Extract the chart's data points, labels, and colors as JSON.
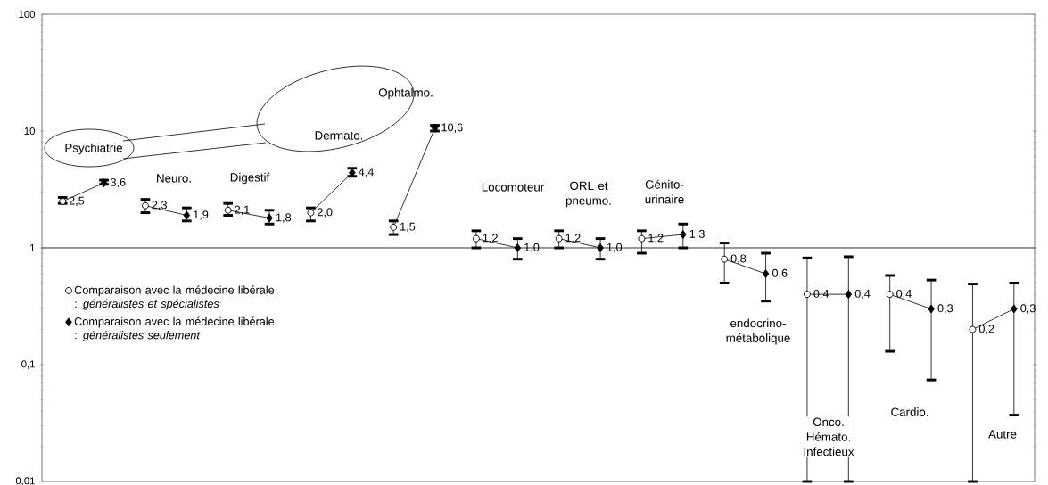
{
  "chart_data": {
    "type": "scatter",
    "log": "y",
    "categories": [
      null,
      null,
      null,
      null,
      null,
      null,
      null,
      null,
      null,
      null,
      null,
      null,
      null,
      null,
      null,
      null,
      null,
      null,
      null,
      null,
      null,
      null,
      null,
      null
    ],
    "ylim": [
      0.01,
      100
    ],
    "yticks": [
      {
        "value": 0.01,
        "label": "0,01"
      },
      {
        "value": 0.1,
        "label": "0,1"
      },
      1,
      10,
      100
    ],
    "tick_labels": "y",
    "grid": false,
    "legend": "left",
    "ref_lines": [
      {
        "axis": "y",
        "value": 1,
        "color": "#000000"
      }
    ],
    "series": [
      {
        "name": "Comparaison avec la médecine libérale : *généralistes et spécialistes*",
        "color": "#000000",
        "marker": "circle",
        "values": [
          2.5,
          null,
          2.3,
          null,
          2.1,
          null,
          2.0,
          null,
          1.5,
          null,
          1.2,
          null,
          1.2,
          null,
          1.2,
          null,
          0.8,
          null,
          0.4,
          null,
          0.4,
          null,
          0.2,
          null
        ],
        "errors": [
          [
            2.4,
            2.7
          ],
          null,
          [
            2.0,
            2.6
          ],
          null,
          [
            1.9,
            2.4
          ],
          null,
          [
            1.7,
            2.2
          ],
          null,
          [
            1.3,
            1.7
          ],
          null,
          [
            1.0,
            1.4
          ],
          null,
          [
            1.0,
            1.4
          ],
          null,
          [
            0.9,
            1.4
          ],
          null,
          [
            0.5,
            1.1
          ],
          null,
          [
            0.01,
            0.82
          ],
          null,
          [
            0.13,
            0.58
          ],
          null,
          [
            0.01,
            0.49
          ],
          null
        ],
        "value_labels": [
          "2,5",
          null,
          "2,3",
          null,
          "2,1",
          null,
          "2,0",
          null,
          "1,5",
          null,
          "1,2",
          null,
          "1,2",
          null,
          "1,2",
          null,
          "0,8",
          null,
          "0,4",
          null,
          "0,4",
          null,
          "0,2",
          null
        ]
      },
      {
        "name": "Comparaison avec la médecine libérale : *généralistes seulement*",
        "color": "#000000",
        "marker": "diamond",
        "values": [
          null,
          3.6,
          null,
          1.9,
          null,
          1.8,
          null,
          4.4,
          null,
          10.6,
          null,
          1.0,
          null,
          1.0,
          null,
          1.3,
          null,
          0.6,
          null,
          0.4,
          null,
          0.3,
          null,
          0.3
        ],
        "errors": [
          null,
          [
            3.5,
            3.8
          ],
          null,
          [
            1.7,
            2.2
          ],
          null,
          [
            1.6,
            2.1
          ],
          null,
          [
            4.1,
            4.8
          ],
          null,
          [
            10.0,
            11.2
          ],
          null,
          [
            0.8,
            1.2
          ],
          null,
          [
            0.8,
            1.2
          ],
          null,
          [
            1.0,
            1.6
          ],
          null,
          [
            0.35,
            0.9
          ],
          null,
          [
            0.01,
            0.84
          ],
          null,
          [
            0.074,
            0.53
          ],
          null,
          [
            0.037,
            0.5
          ]
        ],
        "value_labels": [
          null,
          "3,6",
          null,
          "1,9",
          null,
          "1,8",
          null,
          "4,4",
          null,
          "10,6",
          null,
          "1,0",
          null,
          "1,0",
          null,
          "1,3",
          null,
          "0,6",
          null,
          "0,4",
          null,
          "0,3",
          null,
          "0,3"
        ]
      },
      {
        "type": "line",
        "color": "#000000",
        "marker": "none",
        "values": [
          2.5,
          3.6,
          null,
          null,
          null,
          null,
          null,
          null,
          null,
          null,
          null,
          null,
          null,
          null,
          null,
          null,
          null,
          null,
          null,
          null,
          null,
          null,
          null,
          null
        ]
      },
      {
        "type": "line",
        "color": "#000000",
        "marker": "none",
        "values": [
          null,
          null,
          2.3,
          1.9,
          null,
          null,
          null,
          null,
          null,
          null,
          null,
          null,
          null,
          null,
          null,
          null,
          null,
          null,
          null,
          null,
          null,
          null,
          null,
          null
        ]
      },
      {
        "type": "line",
        "color": "#000000",
        "marker": "none",
        "values": [
          null,
          null,
          null,
          null,
          2.1,
          1.8,
          null,
          null,
          null,
          null,
          null,
          null,
          null,
          null,
          null,
          null,
          null,
          null,
          null,
          null,
          null,
          null,
          null,
          null
        ]
      },
      {
        "type": "line",
        "color": "#000000",
        "marker": "none",
        "values": [
          null,
          null,
          null,
          null,
          null,
          null,
          2.0,
          4.4,
          null,
          null,
          null,
          null,
          null,
          null,
          null,
          null,
          null,
          null,
          null,
          null,
          null,
          null,
          null,
          null
        ]
      },
      {
        "type": "line",
        "color": "#000000",
        "marker": "none",
        "values": [
          null,
          null,
          null,
          null,
          null,
          null,
          null,
          null,
          1.5,
          10.6,
          null,
          null,
          null,
          null,
          null,
          null,
          null,
          null,
          null,
          null,
          null,
          null,
          null,
          null
        ]
      },
      {
        "type": "line",
        "color": "#000000",
        "marker": "none",
        "values": [
          null,
          null,
          null,
          null,
          null,
          null,
          null,
          null,
          null,
          null,
          1.2,
          1.0,
          null,
          null,
          null,
          null,
          null,
          null,
          null,
          null,
          null,
          null,
          null,
          null
        ]
      },
      {
        "type": "line",
        "color": "#000000",
        "marker": "none",
        "values": [
          null,
          null,
          null,
          null,
          null,
          null,
          null,
          null,
          null,
          null,
          null,
          null,
          1.2,
          1.0,
          null,
          null,
          null,
          null,
          null,
          null,
          null,
          null,
          null,
          null
        ]
      },
      {
        "type": "line",
        "color": "#000000",
        "marker": "none",
        "values": [
          null,
          null,
          null,
          null,
          null,
          null,
          null,
          null,
          null,
          null,
          null,
          null,
          null,
          null,
          1.2,
          1.3,
          null,
          null,
          null,
          null,
          null,
          null,
          null,
          null
        ]
      },
      {
        "type": "line",
        "color": "#000000",
        "marker": "none",
        "values": [
          null,
          null,
          null,
          null,
          null,
          null,
          null,
          null,
          null,
          null,
          null,
          null,
          null,
          null,
          null,
          null,
          0.8,
          0.6,
          null,
          null,
          null,
          null,
          null,
          null
        ]
      },
      {
        "type": "line",
        "color": "#000000",
        "marker": "none",
        "values": [
          null,
          null,
          null,
          null,
          null,
          null,
          null,
          null,
          null,
          null,
          null,
          null,
          null,
          null,
          null,
          null,
          null,
          null,
          0.4,
          0.4,
          null,
          null,
          null,
          null
        ]
      },
      {
        "type": "line",
        "color": "#000000",
        "marker": "none",
        "values": [
          null,
          null,
          null,
          null,
          null,
          null,
          null,
          null,
          null,
          null,
          null,
          null,
          null,
          null,
          null,
          null,
          null,
          null,
          null,
          null,
          0.4,
          0.3,
          null,
          null
        ]
      },
      {
        "type": "line",
        "color": "#000000",
        "marker": "none",
        "values": [
          null,
          null,
          null,
          null,
          null,
          null,
          null,
          null,
          null,
          null,
          null,
          null,
          null,
          null,
          null,
          null,
          null,
          null,
          null,
          null,
          null,
          null,
          0.2,
          0.3
        ]
      }
    ],
    "annotations": [
      "Psychiatrie",
      "Neuro.",
      "Digestif",
      "Dermato.",
      "Ophtalmo.",
      "Locomoteur",
      "ORL et pneumo.",
      "Génito-urinaire",
      "endocrino-métabolique",
      "Onco. Hémato. Infectieux",
      "Cardio.",
      "Autre"
    ]
  }
}
